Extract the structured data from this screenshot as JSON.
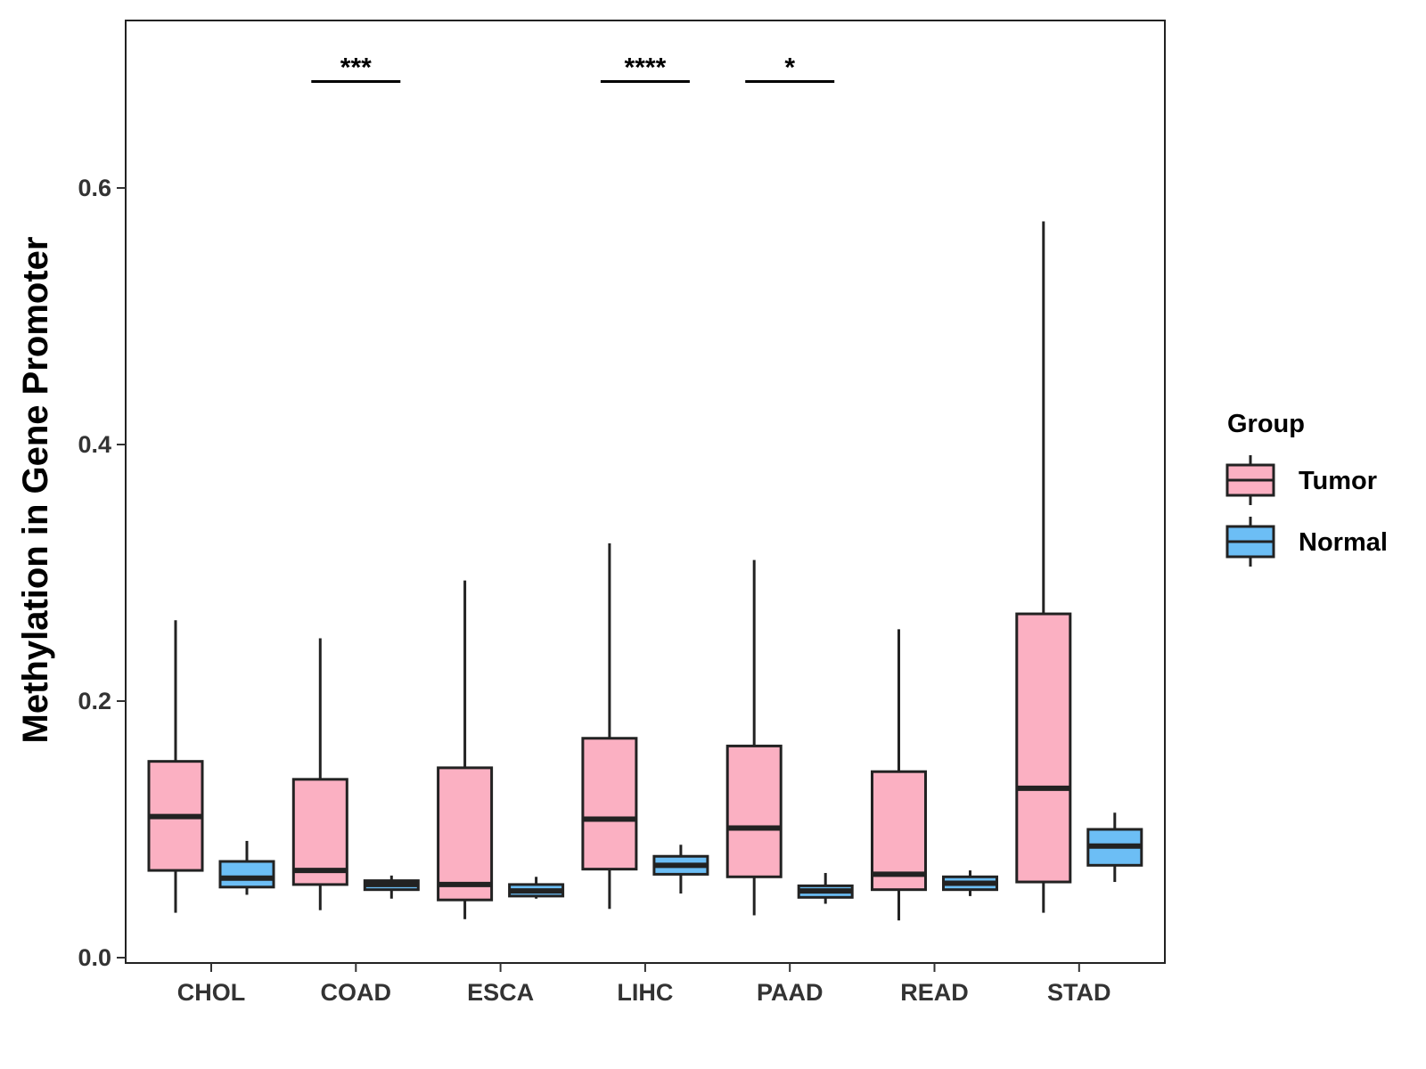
{
  "chart_data": {
    "type": "boxplot",
    "title": "",
    "xlabel": "",
    "ylabel": "Methylation in Gene Promoter",
    "ylim": [
      0,
      0.72
    ],
    "yticks": [
      0.0,
      0.2,
      0.4,
      0.6
    ],
    "ytick_labels": [
      "0.0",
      "0.2",
      "0.4",
      "0.6"
    ],
    "categories": [
      "CHOL",
      "COAD",
      "ESCA",
      "LIHC",
      "PAAD",
      "READ",
      "STAD"
    ],
    "colors": {
      "Tumor": "#FBB0C2",
      "Normal": "#6CBEF5",
      "line": "#222222"
    },
    "legend": {
      "title": "Group",
      "position": "right",
      "entries": [
        "Tumor",
        "Normal"
      ]
    },
    "series": [
      {
        "name": "Tumor",
        "boxes": [
          {
            "category": "CHOL",
            "min": 0.035,
            "q1": 0.068,
            "median": 0.11,
            "q3": 0.153,
            "max": 0.263
          },
          {
            "category": "COAD",
            "min": 0.037,
            "q1": 0.057,
            "median": 0.068,
            "q3": 0.139,
            "max": 0.249
          },
          {
            "category": "ESCA",
            "min": 0.03,
            "q1": 0.045,
            "median": 0.057,
            "q3": 0.148,
            "max": 0.294
          },
          {
            "category": "LIHC",
            "min": 0.038,
            "q1": 0.069,
            "median": 0.108,
            "q3": 0.171,
            "max": 0.323
          },
          {
            "category": "PAAD",
            "min": 0.033,
            "q1": 0.063,
            "median": 0.101,
            "q3": 0.165,
            "max": 0.31
          },
          {
            "category": "READ",
            "min": 0.029,
            "q1": 0.053,
            "median": 0.065,
            "q3": 0.145,
            "max": 0.256
          },
          {
            "category": "STAD",
            "min": 0.035,
            "q1": 0.059,
            "median": 0.132,
            "q3": 0.268,
            "max": 0.574
          }
        ]
      },
      {
        "name": "Normal",
        "boxes": [
          {
            "category": "CHOL",
            "min": 0.049,
            "q1": 0.055,
            "median": 0.062,
            "q3": 0.075,
            "max": 0.091
          },
          {
            "category": "COAD",
            "min": 0.046,
            "q1": 0.053,
            "median": 0.057,
            "q3": 0.06,
            "max": 0.064
          },
          {
            "category": "ESCA",
            "min": 0.046,
            "q1": 0.048,
            "median": 0.052,
            "q3": 0.057,
            "max": 0.063
          },
          {
            "category": "LIHC",
            "min": 0.05,
            "q1": 0.065,
            "median": 0.072,
            "q3": 0.079,
            "max": 0.088
          },
          {
            "category": "PAAD",
            "min": 0.042,
            "q1": 0.047,
            "median": 0.052,
            "q3": 0.056,
            "max": 0.066
          },
          {
            "category": "READ",
            "min": 0.048,
            "q1": 0.053,
            "median": 0.058,
            "q3": 0.063,
            "max": 0.068
          },
          {
            "category": "STAD",
            "min": 0.059,
            "q1": 0.072,
            "median": 0.087,
            "q3": 0.1,
            "max": 0.113
          }
        ]
      }
    ],
    "annotations": [
      {
        "category": "COAD",
        "label": "***",
        "y": 0.683
      },
      {
        "category": "LIHC",
        "label": "****",
        "y": 0.683
      },
      {
        "category": "PAAD",
        "label": "*",
        "y": 0.683
      }
    ]
  }
}
